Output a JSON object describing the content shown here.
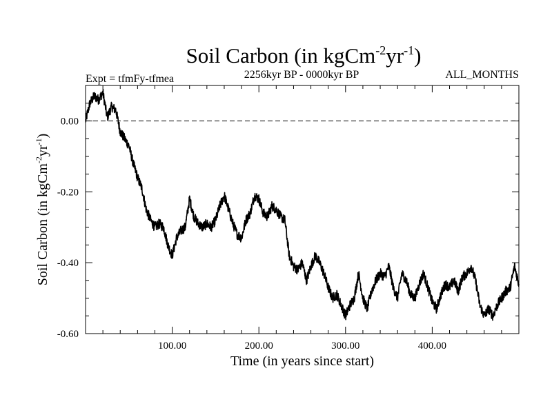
{
  "chart_data": {
    "type": "line",
    "title": "Soil Carbon (in kgCm",
    "title_sup1": "-2",
    "title_mid": "yr",
    "title_sup2": "-1",
    "title_end": ")",
    "subtitle_left": "Expt = tfmFy-tfmea",
    "subtitle_center": "2256kyr BP - 0000kyr BP",
    "subtitle_right": "ALL_MONTHS",
    "xlabel": "Time (in years since start)",
    "ylabel_main": "Soil Carbon (in kgCm",
    "ylabel_sup1": "-2",
    "ylabel_mid": "yr",
    "ylabel_sup2": "-1",
    "ylabel_end": ")",
    "xlim": [
      0,
      500
    ],
    "ylim": [
      -0.6,
      0.1
    ],
    "x_ticks": [
      {
        "value": 100,
        "label": "100.00"
      },
      {
        "value": 200,
        "label": "200.00"
      },
      {
        "value": 300,
        "label": "300.00"
      },
      {
        "value": 400,
        "label": "400.00"
      }
    ],
    "y_ticks": [
      {
        "value": 0.0,
        "label": "0.00"
      },
      {
        "value": -0.2,
        "label": "-0.20"
      },
      {
        "value": -0.4,
        "label": "-0.40"
      },
      {
        "value": -0.6,
        "label": "-0.60"
      }
    ],
    "reference_line": 0.0,
    "grid": false,
    "series": [
      {
        "name": "Soil Carbon",
        "color": "#000000",
        "x": [
          0,
          5,
          10,
          15,
          20,
          25,
          30,
          35,
          40,
          45,
          50,
          55,
          60,
          65,
          70,
          75,
          80,
          85,
          90,
          95,
          100,
          105,
          110,
          115,
          120,
          125,
          130,
          135,
          140,
          145,
          150,
          155,
          160,
          165,
          170,
          175,
          180,
          185,
          190,
          195,
          200,
          205,
          210,
          215,
          220,
          225,
          230,
          235,
          240,
          245,
          250,
          255,
          260,
          265,
          270,
          275,
          280,
          285,
          290,
          295,
          300,
          305,
          310,
          315,
          320,
          325,
          330,
          335,
          340,
          345,
          350,
          355,
          360,
          365,
          370,
          375,
          380,
          385,
          390,
          395,
          400,
          405,
          410,
          415,
          420,
          425,
          430,
          435,
          440,
          445,
          450,
          455,
          460,
          465,
          470,
          475,
          480,
          485,
          490,
          495,
          500
        ],
        "values": [
          0.0,
          0.05,
          0.07,
          0.06,
          0.08,
          0.01,
          0.04,
          0.03,
          -0.03,
          -0.05,
          -0.07,
          -0.12,
          -0.16,
          -0.19,
          -0.25,
          -0.28,
          -0.3,
          -0.29,
          -0.3,
          -0.35,
          -0.38,
          -0.33,
          -0.31,
          -0.3,
          -0.22,
          -0.27,
          -0.29,
          -0.3,
          -0.29,
          -0.3,
          -0.28,
          -0.24,
          -0.21,
          -0.25,
          -0.29,
          -0.32,
          -0.33,
          -0.28,
          -0.26,
          -0.21,
          -0.22,
          -0.26,
          -0.27,
          -0.24,
          -0.25,
          -0.27,
          -0.28,
          -0.38,
          -0.41,
          -0.42,
          -0.4,
          -0.45,
          -0.41,
          -0.38,
          -0.4,
          -0.43,
          -0.47,
          -0.5,
          -0.49,
          -0.52,
          -0.55,
          -0.52,
          -0.5,
          -0.43,
          -0.5,
          -0.53,
          -0.48,
          -0.45,
          -0.43,
          -0.44,
          -0.41,
          -0.47,
          -0.5,
          -0.43,
          -0.45,
          -0.49,
          -0.5,
          -0.46,
          -0.43,
          -0.47,
          -0.51,
          -0.53,
          -0.49,
          -0.46,
          -0.47,
          -0.45,
          -0.48,
          -0.44,
          -0.43,
          -0.41,
          -0.45,
          -0.52,
          -0.55,
          -0.53,
          -0.55,
          -0.52,
          -0.5,
          -0.48,
          -0.47,
          -0.41,
          -0.46
        ]
      }
    ]
  }
}
